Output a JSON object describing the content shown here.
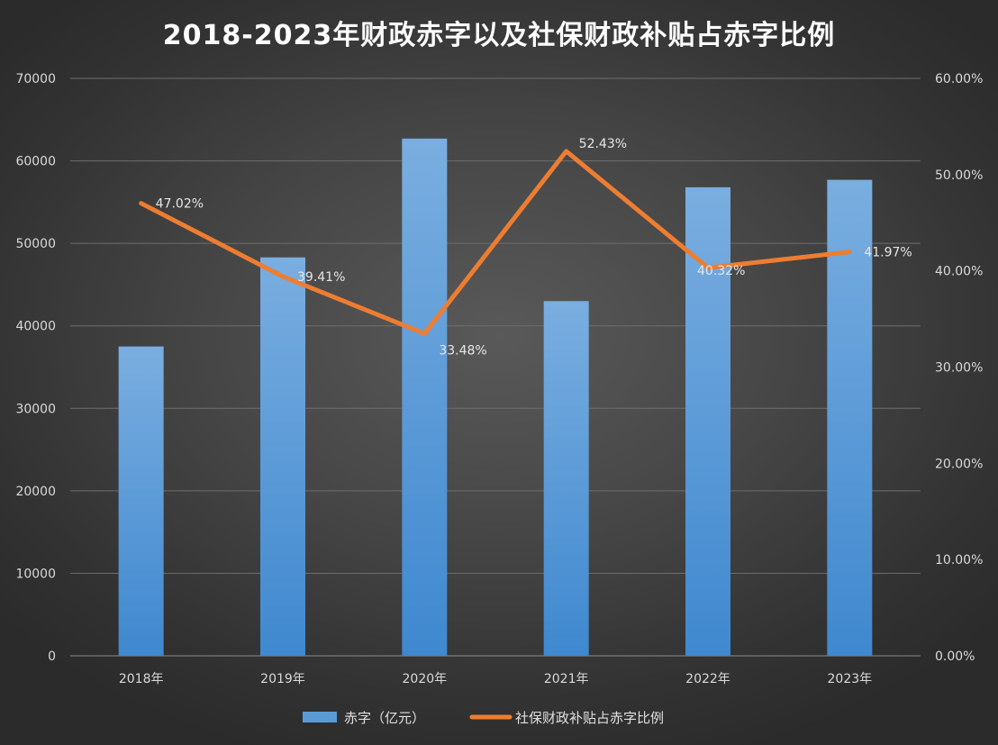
{
  "chart_data": {
    "type": "bar",
    "title": "2018-2023年财政赤字以及社保财政补贴占赤字比例",
    "categories": [
      "2018年",
      "2019年",
      "2020年",
      "2021年",
      "2022年",
      "2023年"
    ],
    "series": [
      {
        "name": "赤字（亿元）",
        "type": "bar",
        "axis": "left",
        "values": [
          37500,
          48300,
          62700,
          43000,
          56800,
          57700
        ],
        "color": "#5b9bd5"
      },
      {
        "name": "社保财政补贴占赤字比例",
        "type": "line",
        "axis": "right",
        "values": [
          47.02,
          39.41,
          33.48,
          52.43,
          40.32,
          41.97
        ],
        "labels": [
          "47.02%",
          "39.41%",
          "33.48%",
          "52.43%",
          "40.32%",
          "41.97%"
        ],
        "color": "#ed7d31"
      }
    ],
    "y_left": {
      "range": [
        0,
        70000
      ],
      "ticks": [
        "0",
        "10000",
        "20000",
        "30000",
        "40000",
        "50000",
        "60000",
        "70000"
      ]
    },
    "y_right": {
      "range": [
        0,
        60
      ],
      "ticks": [
        "0.00%",
        "10.00%",
        "20.00%",
        "30.00%",
        "40.00%",
        "50.00%",
        "60.00%"
      ]
    },
    "grid": true,
    "legend_position": "bottom"
  }
}
